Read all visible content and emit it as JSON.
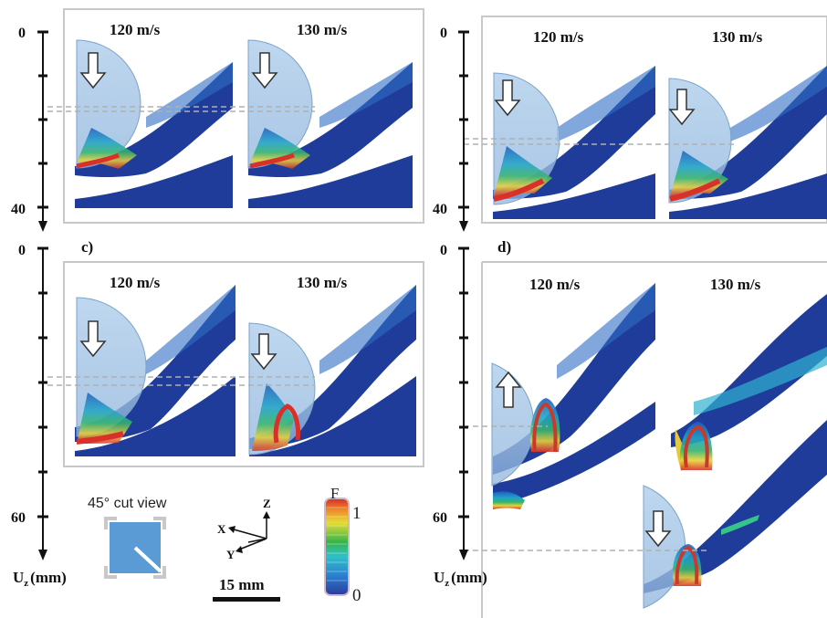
{
  "panels": {
    "a": {
      "speeds": [
        "120 m/s",
        "130 m/s"
      ]
    },
    "b": {
      "speeds": [
        "120 m/s",
        "130 m/s"
      ]
    },
    "c": {
      "label": "c)",
      "speeds": [
        "120 m/s",
        "130 m/s"
      ]
    },
    "d": {
      "label": "d)",
      "speeds": [
        "120 m/s",
        "130 m/s"
      ]
    }
  },
  "axes": {
    "top_left": {
      "ticks": [
        "0",
        "40"
      ]
    },
    "top_right": {
      "ticks": [
        "0",
        "40"
      ]
    },
    "bottom_left": {
      "ticks": [
        "0",
        "60"
      ],
      "unit_main": "U",
      "unit_sub": "z",
      "unit_tail": "(mm)"
    },
    "bottom_right": {
      "ticks": [
        "0",
        "60"
      ],
      "unit_main": "U",
      "unit_sub": "z",
      "unit_tail": "(mm)"
    }
  },
  "legend": {
    "cut_view_label": "45° cut view",
    "scale_bar_label": "15 mm",
    "colorbar_title": "F",
    "colorbar_max": "1",
    "colorbar_min": "0",
    "triad": {
      "z": "Z",
      "x": "X",
      "y": "Y"
    }
  },
  "colors": {
    "plate": "#1f3c9a",
    "projectile": "#9cc3e6",
    "frame": "#c8c8c8",
    "dashed": "#b0b0b0"
  }
}
